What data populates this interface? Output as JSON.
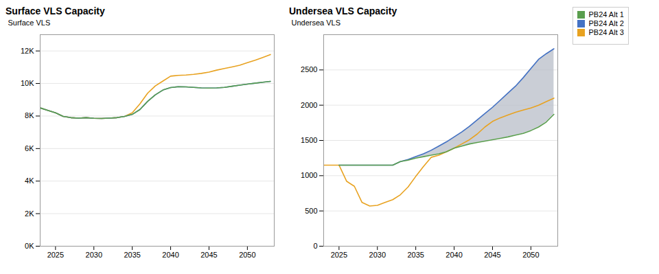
{
  "chart_data": [
    {
      "type": "line",
      "title": "Surface VLS Capacity",
      "ylabel": "Surface VLS",
      "x": [
        2023,
        2024,
        2025,
        2026,
        2027,
        2028,
        2029,
        2030,
        2031,
        2032,
        2033,
        2034,
        2035,
        2036,
        2037,
        2038,
        2039,
        2040,
        2041,
        2042,
        2043,
        2044,
        2045,
        2046,
        2047,
        2048,
        2049,
        2050,
        2051,
        2052,
        2053
      ],
      "series": [
        {
          "name": "PB24 Alt 1",
          "color": "#5a9e4e",
          "values": [
            8500,
            8350,
            8200,
            7980,
            7900,
            7870,
            7900,
            7860,
            7850,
            7870,
            7900,
            7980,
            8100,
            8400,
            8900,
            9300,
            9600,
            9750,
            9800,
            9790,
            9760,
            9730,
            9720,
            9730,
            9760,
            9830,
            9900,
            9960,
            10020,
            10080,
            10130
          ]
        },
        {
          "name": "PB24 Alt 2",
          "color": "#4472c4",
          "values": [
            8500,
            8350,
            8200,
            7980,
            7900,
            7870,
            7900,
            7860,
            7850,
            7870,
            7900,
            7980,
            8100,
            8400,
            8900,
            9300,
            9600,
            9750,
            9800,
            9790,
            9760,
            9730,
            9720,
            9730,
            9760,
            9830,
            9900,
            9960,
            10020,
            10080,
            10130
          ]
        },
        {
          "name": "PB24 Alt 3",
          "color": "#e8a220",
          "values": [
            8500,
            8350,
            8200,
            7980,
            7900,
            7870,
            7900,
            7860,
            7850,
            7870,
            7900,
            7980,
            8200,
            8750,
            9400,
            9850,
            10150,
            10450,
            10500,
            10520,
            10560,
            10620,
            10700,
            10820,
            10920,
            11020,
            11120,
            11280,
            11430,
            11600,
            11780
          ]
        }
      ],
      "xlim": [
        2023.0,
        2053.5
      ],
      "xticks": [
        2025,
        2030,
        2035,
        2040,
        2045,
        2050
      ],
      "ylim": [
        0,
        13000
      ],
      "yticks": [
        {
          "value": 0,
          "label": "0K"
        },
        {
          "value": 2000,
          "label": "2K"
        },
        {
          "value": 4000,
          "label": "4K"
        },
        {
          "value": 6000,
          "label": "6K"
        },
        {
          "value": 8000,
          "label": "8K"
        },
        {
          "value": 10000,
          "label": "10K"
        },
        {
          "value": 12000,
          "label": "12K"
        }
      ],
      "grid": true,
      "legend": "upper right"
    },
    {
      "type": "line",
      "title": "Undersea VLS Capacity",
      "ylabel": "Undersea VLS",
      "x": [
        2023,
        2024,
        2025,
        2026,
        2027,
        2028,
        2029,
        2030,
        2031,
        2032,
        2033,
        2034,
        2035,
        2036,
        2037,
        2038,
        2039,
        2040,
        2041,
        2042,
        2043,
        2044,
        2045,
        2046,
        2047,
        2048,
        2049,
        2050,
        2051,
        2052,
        2053
      ],
      "series": [
        {
          "name": "PB24 Alt 1",
          "color": "#5a9e4e",
          "values": [
            null,
            null,
            1150,
            1150,
            1150,
            1150,
            1150,
            1150,
            1150,
            1150,
            1200,
            1220,
            1250,
            1270,
            1290,
            1310,
            1340,
            1390,
            1420,
            1450,
            1470,
            1490,
            1510,
            1530,
            1550,
            1575,
            1600,
            1640,
            1690,
            1760,
            1870
          ]
        },
        {
          "name": "PB24 Alt 2",
          "color": "#4472c4",
          "values": [
            null,
            null,
            1150,
            1150,
            1150,
            1150,
            1150,
            1150,
            1150,
            1150,
            1200,
            1230,
            1270,
            1310,
            1360,
            1420,
            1480,
            1550,
            1620,
            1700,
            1790,
            1880,
            1970,
            2070,
            2170,
            2270,
            2390,
            2520,
            2650,
            2730,
            2800
          ]
        },
        {
          "name": "PB24 Alt 3",
          "color": "#e8a220",
          "values": [
            1150,
            1150,
            1150,
            920,
            850,
            620,
            570,
            580,
            620,
            660,
            730,
            840,
            990,
            1130,
            1260,
            1290,
            1340,
            1390,
            1450,
            1510,
            1590,
            1690,
            1770,
            1820,
            1860,
            1900,
            1930,
            1960,
            2000,
            2050,
            2100
          ]
        }
      ],
      "fill_between": {
        "series": [
          "PB24 Alt 1",
          "PB24 Alt 2"
        ],
        "color": "#b8bec8"
      },
      "xlim": [
        2023.0,
        2053.5
      ],
      "xticks": [
        2025,
        2030,
        2035,
        2040,
        2045,
        2050
      ],
      "ylim": [
        0,
        3000
      ],
      "yticks": [
        0,
        500,
        1000,
        1500,
        2000,
        2500
      ],
      "grid": true
    }
  ]
}
